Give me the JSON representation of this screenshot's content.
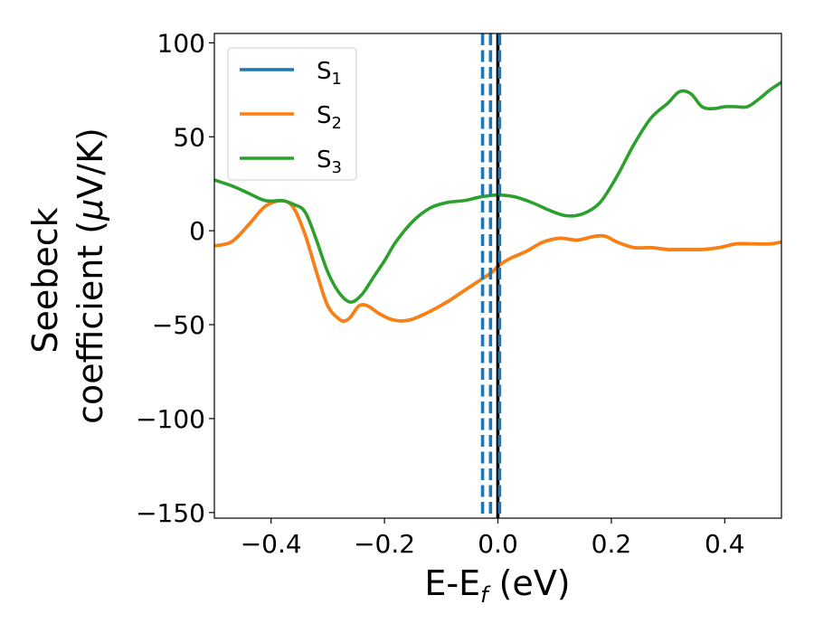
{
  "chart_data": {
    "type": "line",
    "xlabel": "E-E",
    "xlabel_sub": "f",
    "xlabel_unit": " (eV)",
    "ylabel_line1": "Seebeck",
    "ylabel_line2_pre": "coefficient  (",
    "ylabel_mu": "μ",
    "ylabel_line2_post": "V/K)",
    "xlim": [
      -0.5,
      0.5
    ],
    "ylim": [
      -153,
      105
    ],
    "xticks": [
      -0.4,
      -0.2,
      0.0,
      0.2,
      0.4
    ],
    "xtick_labels": [
      "−0.4",
      "−0.2",
      "0.0",
      "0.2",
      "0.4"
    ],
    "yticks": [
      -150,
      -100,
      -50,
      0,
      50,
      100
    ],
    "ytick_labels": [
      "−150",
      "−100",
      "−50",
      "0",
      "50",
      "100"
    ],
    "grid": false,
    "legend_position": "top-left",
    "series": [
      {
        "name": "S",
        "name_sub": "1",
        "color": "#1f77b4",
        "x": [
          -0.5,
          -0.47,
          -0.44,
          -0.41,
          -0.38,
          -0.36,
          -0.34,
          -0.32,
          -0.3,
          -0.28,
          -0.27,
          -0.26,
          -0.245,
          -0.23,
          -0.21,
          -0.19,
          -0.17,
          -0.15,
          -0.12,
          -0.09,
          -0.06,
          -0.03,
          -0.01,
          0.0,
          0.02,
          0.05,
          0.08,
          0.11,
          0.14,
          0.17,
          0.19,
          0.21,
          0.24,
          0.27,
          0.3,
          0.33,
          0.36,
          0.39,
          0.42,
          0.45,
          0.48,
          0.5
        ],
        "y": [
          -8,
          -6,
          3,
          13,
          16,
          12,
          -2,
          -22,
          -40,
          -47,
          -48,
          -46,
          -40,
          -40,
          -44,
          -47,
          -48,
          -47,
          -43,
          -38,
          -32,
          -26,
          -22,
          -19,
          -15,
          -11,
          -6,
          -4,
          -5,
          -3,
          -3,
          -6,
          -9,
          -9,
          -10,
          -10,
          -10,
          -9,
          -7,
          -7,
          -7,
          -6
        ]
      },
      {
        "name": "S",
        "name_sub": "2",
        "color": "#ff7f0e",
        "x": [
          -0.5,
          -0.47,
          -0.44,
          -0.41,
          -0.38,
          -0.36,
          -0.34,
          -0.32,
          -0.3,
          -0.28,
          -0.27,
          -0.26,
          -0.245,
          -0.23,
          -0.21,
          -0.19,
          -0.17,
          -0.15,
          -0.12,
          -0.09,
          -0.06,
          -0.03,
          -0.01,
          0.0,
          0.02,
          0.05,
          0.08,
          0.11,
          0.14,
          0.17,
          0.19,
          0.21,
          0.24,
          0.27,
          0.3,
          0.33,
          0.36,
          0.39,
          0.42,
          0.45,
          0.48,
          0.5
        ],
        "y": [
          -8,
          -6,
          3,
          13,
          16,
          12,
          -2,
          -22,
          -40,
          -47,
          -48,
          -46,
          -40,
          -40,
          -44,
          -47,
          -48,
          -47,
          -43,
          -38,
          -32,
          -26,
          -22,
          -19,
          -15,
          -11,
          -6,
          -4,
          -5,
          -3,
          -3,
          -6,
          -9,
          -9,
          -10,
          -10,
          -10,
          -9,
          -7,
          -7,
          -7,
          -6
        ]
      },
      {
        "name": "S",
        "name_sub": "3",
        "color": "#2ca02c",
        "x": [
          -0.5,
          -0.47,
          -0.44,
          -0.41,
          -0.38,
          -0.36,
          -0.34,
          -0.32,
          -0.3,
          -0.28,
          -0.26,
          -0.24,
          -0.22,
          -0.2,
          -0.18,
          -0.15,
          -0.12,
          -0.09,
          -0.06,
          -0.03,
          0.0,
          0.03,
          0.06,
          0.09,
          0.12,
          0.15,
          0.18,
          0.21,
          0.24,
          0.27,
          0.3,
          0.32,
          0.34,
          0.36,
          0.38,
          0.4,
          0.42,
          0.44,
          0.46,
          0.48,
          0.5
        ],
        "y": [
          27,
          24,
          20,
          16,
          16,
          14,
          10,
          -5,
          -22,
          -33,
          -38,
          -34,
          -25,
          -16,
          -6,
          5,
          12,
          15,
          16,
          18,
          19,
          18,
          15,
          11,
          8,
          9,
          15,
          29,
          46,
          60,
          68,
          74,
          73,
          66,
          65,
          66,
          66,
          66,
          70,
          75,
          79
        ]
      }
    ],
    "vlines": [
      {
        "x": -0.027,
        "style": "dashed",
        "color": "#1f77b4"
      },
      {
        "x": -0.013,
        "style": "dashed",
        "color": "#1f77b4"
      },
      {
        "x": 0.0,
        "style": "solid",
        "color": "#000000"
      },
      {
        "x": 0.003,
        "style": "dashed",
        "color": "#1f77b4"
      }
    ]
  }
}
